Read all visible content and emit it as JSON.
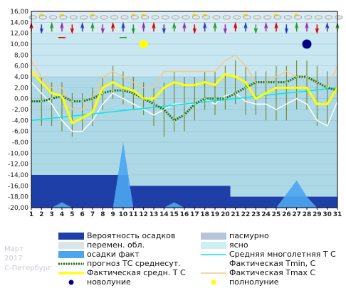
{
  "side_text": {
    "month": "Март",
    "year": "2017",
    "city": "С-Петербург"
  },
  "colors": {
    "plot_bg": "#add8e6",
    "upper_bg": "#c9e7f1",
    "precip_prob": "#1e3fa8",
    "precip_fact": "#4aa6f0",
    "forecast": "#1f6e10",
    "mean_longterm": "#00e8e8",
    "fact_mean": "#ffff00",
    "fact_min": "#ffffff",
    "fact_max": "#f2c98a",
    "bars": "#6b7a1a",
    "new_moon": "#00008b",
    "full_moon": "#ffff00"
  },
  "chart_data": {
    "type": "line",
    "x": [
      1,
      2,
      3,
      4,
      5,
      6,
      7,
      8,
      9,
      10,
      11,
      12,
      13,
      14,
      15,
      16,
      17,
      18,
      19,
      20,
      21,
      22,
      23,
      24,
      25,
      26,
      27,
      28,
      29,
      30,
      31
    ],
    "xlim": [
      1,
      31
    ],
    "ylim": [
      -20,
      16
    ],
    "yticks": [
      "16,00",
      "14,00",
      "12,00",
      "10,00",
      "8,00",
      "6,00",
      "4,00",
      "2,00",
      "0,00",
      "-2,00",
      "-4,00",
      "-6,00",
      "-8,00",
      "-10,00",
      "-12,00",
      "-14,00",
      "-16,00",
      "-18,00",
      "-20,00"
    ],
    "series": [
      {
        "name": "Фактическая средн. Т С",
        "values": [
          5,
          3,
          1,
          0.5,
          -4.5,
          -3.5,
          -2.5,
          2,
          3,
          2,
          1.5,
          0,
          0,
          2,
          3,
          2.5,
          2.5,
          3,
          2.5,
          4.5,
          4,
          3,
          0,
          1,
          2,
          2,
          2,
          2,
          -1,
          -1,
          2
        ]
      },
      {
        "name": "Фактическая Tmin, С",
        "values": [
          3,
          1,
          -1,
          -4,
          -6,
          -6,
          -4,
          -1,
          1,
          0,
          -1,
          -2,
          -3,
          -2,
          -1,
          -1,
          -1,
          0,
          -1,
          0.5,
          1,
          -0.5,
          -1,
          -1,
          -2,
          -1,
          0,
          -1,
          -4,
          -5,
          -0.5
        ]
      },
      {
        "name": "Фактическая Tmax С",
        "values": [
          7,
          4,
          2,
          2,
          -2,
          -2,
          0,
          4,
          5,
          4,
          3,
          2,
          2,
          5,
          5,
          5,
          5,
          5,
          5,
          7,
          8,
          6,
          3,
          3,
          4,
          5,
          4,
          4,
          3,
          2,
          6
        ]
      },
      {
        "name": "прогноз ТС среднесут.",
        "values": [
          -0.5,
          -0.5,
          0,
          0.5,
          -0.5,
          -0.5,
          0,
          1,
          1.5,
          1.5,
          1,
          0,
          -1,
          -2,
          -4,
          -3,
          -1,
          0,
          0,
          0,
          1,
          2,
          3,
          3,
          3,
          3,
          4,
          4,
          3,
          2,
          1.5
        ]
      },
      {
        "name": "Средняя многолетняя Т С",
        "values": [
          -4,
          -3.8,
          -3.6,
          -3.4,
          -3.2,
          -3,
          -2.8,
          -2.6,
          -2.4,
          -2.2,
          -2,
          -1.8,
          -1.6,
          -1.4,
          -1.2,
          -1,
          -0.8,
          -0.6,
          -0.4,
          -0.2,
          0,
          0.2,
          0.4,
          0.6,
          0.8,
          1,
          1.2,
          1.4,
          1.6,
          1.8,
          2
        ]
      }
    ],
    "precip_probability": [
      -14,
      -14,
      -14,
      -14,
      -14,
      -14,
      -14,
      -14,
      -14,
      -14,
      -16,
      -16,
      -16,
      -16,
      -16,
      -16,
      -16,
      -16,
      -16,
      -16,
      -18,
      -18,
      -18,
      -18,
      -18,
      -18,
      -18,
      -18,
      -18,
      -18,
      -18
    ],
    "precip_fact": [
      -20,
      -20,
      -20,
      -19,
      -20,
      -20,
      -20,
      -20,
      -20,
      -8,
      -20,
      -20,
      -20,
      -20,
      -19,
      -20,
      -20,
      -20,
      -20,
      -20,
      -20,
      -20,
      -20,
      -20,
      -20,
      -17.5,
      -15,
      -18,
      -20,
      -20,
      -20
    ],
    "ranges": [
      [
        -4,
        3
      ],
      [
        -5,
        4
      ],
      [
        -5,
        3
      ],
      [
        -6,
        3
      ],
      [
        -7,
        1
      ],
      [
        -6,
        1
      ],
      [
        -5,
        2
      ],
      [
        -2,
        4
      ],
      [
        0,
        6
      ],
      [
        -1,
        5
      ],
      [
        -2,
        4
      ],
      [
        -3,
        3
      ],
      [
        -5,
        2
      ],
      [
        -7,
        3
      ],
      [
        -6,
        5
      ],
      [
        -6,
        4
      ],
      [
        -4,
        4
      ],
      [
        -2,
        5
      ],
      [
        -3,
        5
      ],
      [
        -2,
        6
      ],
      [
        -1,
        7
      ],
      [
        -3,
        6
      ],
      [
        -3,
        5
      ],
      [
        -4,
        5
      ],
      [
        -4,
        6
      ],
      [
        -4,
        6
      ],
      [
        -2,
        7
      ],
      [
        -2,
        7
      ],
      [
        -5,
        6
      ],
      [
        -5,
        5
      ],
      [
        -3,
        6
      ]
    ],
    "new_moon_day": 28,
    "full_moon_day": 12,
    "legend": [
      {
        "label": "Вероятность осадков",
        "kind": "box",
        "color_key": "precip_prob"
      },
      {
        "label": "пасмурно",
        "kind": "box",
        "color_key": "overcast"
      },
      {
        "label": "перемен. обл.",
        "kind": "box",
        "color_key": "partly"
      },
      {
        "label": "ясно",
        "kind": "box",
        "color_key": "clear"
      },
      {
        "label": "осадки факт",
        "kind": "box",
        "color_key": "precip_fact"
      },
      {
        "label": "Средняя многолетняя Т С",
        "kind": "line",
        "color_key": "mean_longterm"
      },
      {
        "label": "прогноз ТС среднесут.",
        "kind": "dotted",
        "color_key": "forecast"
      },
      {
        "label": "Фактическая Tmin, С",
        "kind": "line",
        "color_key": "fact_min"
      },
      {
        "label": "Фактическая средн. Т С",
        "kind": "thick",
        "color_key": "fact_mean"
      },
      {
        "label": "Фактическая Tmax С",
        "kind": "line",
        "color_key": "fact_max"
      },
      {
        "label": "новолуние",
        "kind": "dot",
        "color_key": "new_moon"
      },
      {
        "label": "полнолуние",
        "kind": "dot",
        "color_key": "full_moon"
      }
    ]
  }
}
